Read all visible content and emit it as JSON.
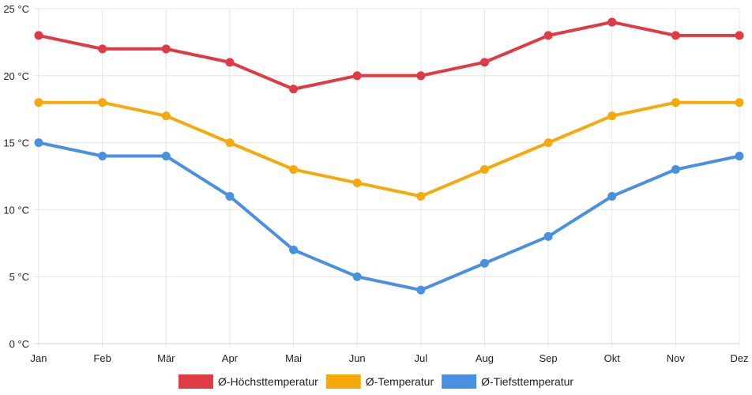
{
  "chart_data": {
    "type": "line",
    "categories": [
      "Jan",
      "Feb",
      "Mär",
      "Apr",
      "Mai",
      "Jun",
      "Jul",
      "Aug",
      "Sep",
      "Okt",
      "Nov",
      "Dez"
    ],
    "ylim": [
      0,
      25
    ],
    "ytick_step": 5,
    "ytick_labels": [
      "0 °C",
      "5 °C",
      "10 °C",
      "15 °C",
      "20 °C",
      "25 °C"
    ],
    "grid": true,
    "legend_position": "bottom-center",
    "series": [
      {
        "name": "Ø-Höchsttemperatur",
        "color": "#e03a45",
        "values": [
          23,
          22,
          22,
          21,
          19,
          20,
          20,
          21,
          23,
          24,
          23,
          23
        ]
      },
      {
        "name": "Ø-Temperatur",
        "color": "#f7a90c",
        "values": [
          18,
          18,
          17,
          15,
          13,
          12,
          11,
          13,
          15,
          17,
          18,
          18
        ]
      },
      {
        "name": "Ø-Tiefsttemperatur",
        "color": "#4a90e2",
        "values": [
          15,
          14,
          14,
          11,
          7,
          5,
          4,
          6,
          8,
          11,
          13,
          14
        ]
      }
    ]
  }
}
